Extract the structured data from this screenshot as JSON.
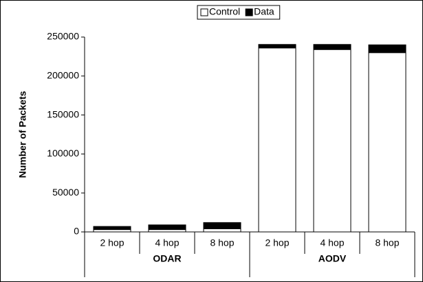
{
  "chart_data": {
    "type": "stacked-bar",
    "y_label": "Number of Packets",
    "categories": [
      "2 hop",
      "4 hop",
      "8 hop",
      "2 hop",
      "4 hop",
      "8 hop"
    ],
    "groups": [
      "ODAR",
      "AODV"
    ],
    "series": [
      {
        "name": "Control",
        "color": "#ffffff",
        "values": [
          3000,
          3000,
          4000,
          236000,
          234000,
          230000
        ]
      },
      {
        "name": "Data",
        "color": "#000000",
        "values": [
          4000,
          6000,
          8000,
          4500,
          6500,
          10000
        ]
      }
    ],
    "ylim": [
      0,
      250000
    ],
    "yticks": [
      0,
      50000,
      100000,
      150000,
      200000,
      250000
    ],
    "grid": false,
    "legend": "top"
  }
}
